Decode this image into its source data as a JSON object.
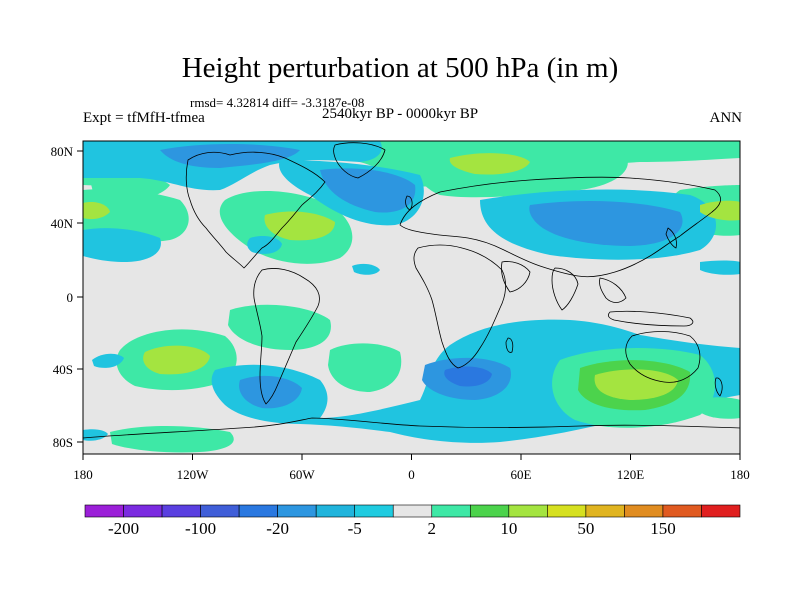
{
  "title": "Height perturbation at 500 hPa (in m)",
  "stats": "rmsd= 4.32814 diff= -3.3187e-08",
  "experiment": "Expt = tfMfH-tfmea",
  "period": "2540kyr BP - 0000kyr BP",
  "season": "ANN",
  "map": {
    "lon_range": [
      -180,
      180
    ],
    "lat_range": [
      -90,
      90
    ],
    "x_ticks": [
      "180",
      "120W",
      "60W",
      "0",
      "60E",
      "120E",
      "180"
    ],
    "y_ticks": [
      "80N",
      "40N",
      "0",
      "40S",
      "80S"
    ]
  },
  "colorbar": {
    "colors": [
      "#9b1fd8",
      "#7b2be0",
      "#5a3fe0",
      "#3f5ed8",
      "#2a78e0",
      "#2d96e0",
      "#20b4dc",
      "#1fcbe0",
      "#e6e6e6",
      "#3ee8a6",
      "#4cd34c",
      "#a4e440",
      "#d6e020",
      "#e0b420",
      "#e08c20",
      "#e05a20",
      "#e01f1f"
    ],
    "labels": [
      "-200",
      "-100",
      "-20",
      "-5",
      "2",
      "10",
      "50",
      "150"
    ],
    "label_positions": [
      1,
      3,
      5,
      7,
      9,
      11,
      13,
      15
    ]
  },
  "palette": {
    "land_bg": "#e6e6e6",
    "green": "#3ee8a6",
    "midgreen": "#4cd34c",
    "yellowgreen": "#a4e440",
    "cyan": "#20c4e0",
    "blue": "#2d96e0",
    "deepblue": "#2a78e0"
  }
}
